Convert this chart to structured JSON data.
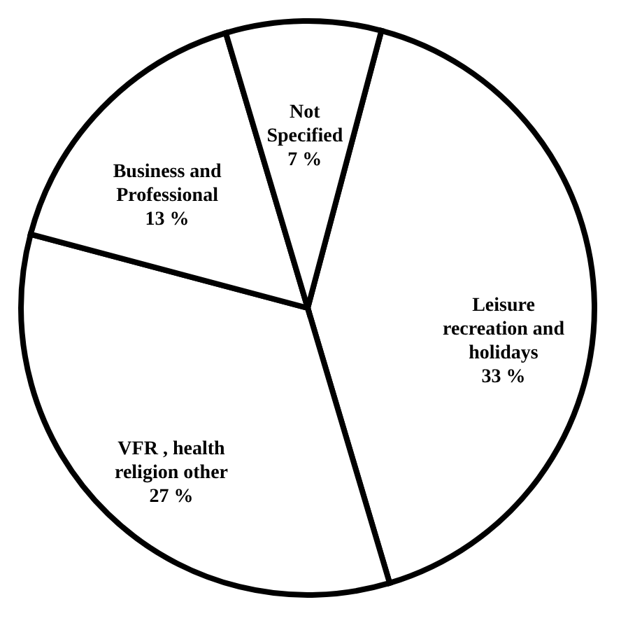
{
  "chart_data": {
    "type": "pie",
    "categories": [
      "Leisure recreation and holidays",
      "VFR , health religion other",
      "Business and Professional",
      "Not Specified"
    ],
    "values": [
      33,
      27,
      13,
      7
    ],
    "value_labels": [
      "33 %",
      "27 %",
      "13 %",
      "7 %"
    ],
    "colors": [
      "#ffffff",
      "#ffffff",
      "#ffffff",
      "#ffffff"
    ],
    "legend": false
  }
}
